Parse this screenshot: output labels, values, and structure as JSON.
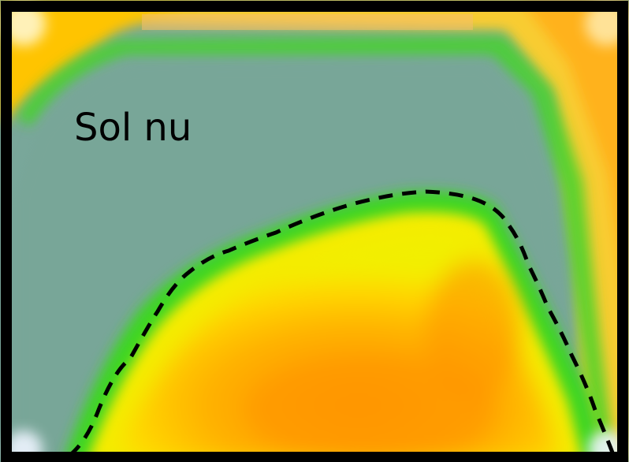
{
  "image": {
    "label": "Sol nu",
    "boundary_style": "dashed",
    "colors": {
      "frame": "#000000",
      "bare_soil": "#7aa89a",
      "vegetation_high": "#ff9a00",
      "vegetation_mid": "#ffd600",
      "transition": "#3ed624",
      "dashed_line": "#000000"
    }
  }
}
